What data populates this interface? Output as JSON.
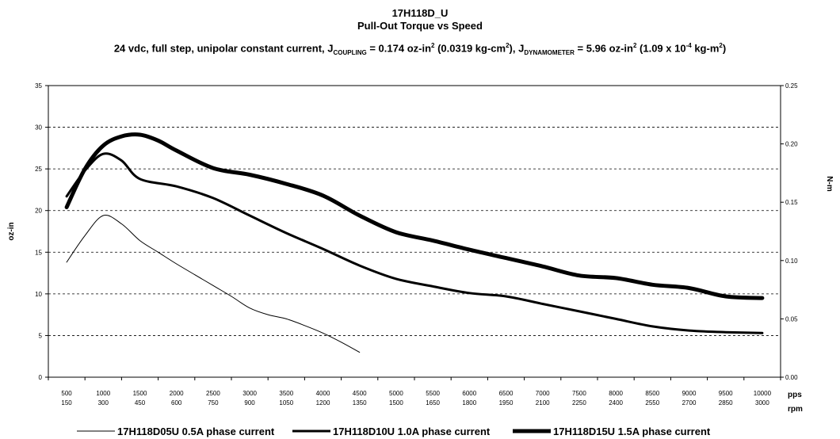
{
  "title": "17H118D_U",
  "subtitle": "Pull-Out Torque vs Speed",
  "conditions": {
    "part1": "24 vdc, full step, unipolar constant current, J",
    "sub1": "COUPLING",
    "part2": " = 0.174 oz-in",
    "sup1": "2",
    "part3": " (0.0319 kg-cm",
    "sup2": "2",
    "part4": "), J",
    "sub2": "DYNAMOMETER",
    "part5": " = 5.96 oz-in",
    "sup3": "2",
    "part6": " (1.09 x 10",
    "sup4": "-4",
    "part7": " kg-m",
    "sup5": "2",
    "part8": ")"
  },
  "chart_data": {
    "type": "line",
    "title": "17H118D_U",
    "subtitle": "Pull-Out Torque vs Speed",
    "ylabel": "oz-in",
    "y2label": "N-m",
    "x_unit_labels": [
      "pps",
      "rpm"
    ],
    "ylim": [
      0,
      35
    ],
    "yticks": [
      0,
      5,
      10,
      15,
      20,
      25,
      30,
      35
    ],
    "y2lim": [
      0.0,
      0.25
    ],
    "y2ticks": [
      "0.00",
      "0.05",
      "0.10",
      "0.15",
      "0.20",
      "0.25"
    ],
    "grid": "horizontal dashed",
    "legend_position": "bottom",
    "categories_pps": [
      "500",
      "1000",
      "1500",
      "2000",
      "2500",
      "3000",
      "3500",
      "4000",
      "4500",
      "5000",
      "5500",
      "6000",
      "6500",
      "7000",
      "7500",
      "8000",
      "8500",
      "9000",
      "9500",
      "10000"
    ],
    "categories_rpm": [
      "150",
      "300",
      "450",
      "600",
      "750",
      "900",
      "1050",
      "1200",
      "1350",
      "1500",
      "1650",
      "1800",
      "1950",
      "2100",
      "2250",
      "2400",
      "2550",
      "2700",
      "2850",
      "3000"
    ],
    "series": [
      {
        "name": "17H118D05U 0.5A phase current",
        "stroke": 1,
        "x": [
          500,
          750,
          1000,
          1250,
          1500,
          1750,
          2000,
          2250,
          2500,
          2750,
          3000,
          3250,
          3500,
          3750,
          4000,
          4250,
          4500
        ],
        "y": [
          13.8,
          17.0,
          19.4,
          18.4,
          16.4,
          15.0,
          13.6,
          12.3,
          11.0,
          9.7,
          8.3,
          7.5,
          7.0,
          6.2,
          5.3,
          4.2,
          3.0
        ]
      },
      {
        "name": "17H118D10U 1.0A phase current",
        "stroke": 3,
        "x": [
          500,
          750,
          1000,
          1250,
          1500,
          2000,
          2500,
          3000,
          3500,
          4000,
          4500,
          5000,
          5500,
          6000,
          6500,
          7000,
          7500,
          8000,
          8500,
          9000,
          9500,
          10000
        ],
        "y": [
          21.7,
          24.8,
          26.8,
          26.0,
          23.8,
          22.9,
          21.5,
          19.4,
          17.3,
          15.4,
          13.4,
          11.8,
          10.9,
          10.1,
          9.7,
          8.8,
          7.9,
          7.0,
          6.1,
          5.6,
          5.4,
          5.3
        ]
      },
      {
        "name": "17H118D15U 1.5A phase current",
        "stroke": 5,
        "x": [
          500,
          750,
          1000,
          1250,
          1500,
          1750,
          2000,
          2500,
          3000,
          3500,
          4000,
          4500,
          5000,
          5500,
          6000,
          6500,
          7000,
          7500,
          8000,
          8500,
          9000,
          9500,
          10000
        ],
        "y": [
          20.4,
          25.0,
          27.8,
          28.9,
          29.1,
          28.4,
          27.2,
          25.1,
          24.3,
          23.2,
          21.8,
          19.4,
          17.4,
          16.4,
          15.3,
          14.3,
          13.3,
          12.2,
          11.9,
          11.1,
          10.7,
          9.7,
          9.5
        ]
      }
    ]
  }
}
